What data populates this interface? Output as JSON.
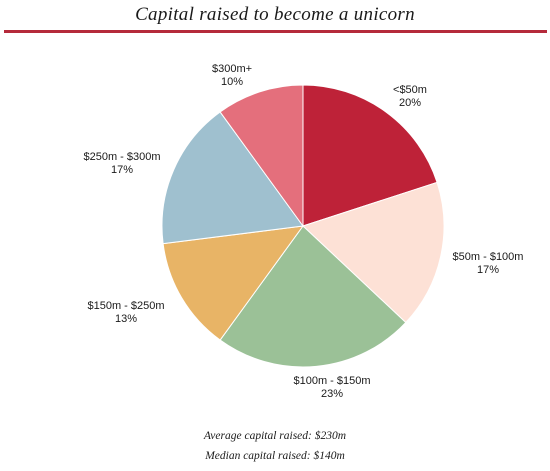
{
  "chart_data": {
    "type": "pie",
    "title": "Capital raised to become a unicorn",
    "slices": [
      {
        "label": "<$50m",
        "percent_label": "20%",
        "value": 20,
        "color": "#be2238"
      },
      {
        "label": "$50m - $100m",
        "percent_label": "17%",
        "value": 17,
        "color": "#fde1d6"
      },
      {
        "label": "$100m - $150m",
        "percent_label": "23%",
        "value": 23,
        "color": "#9bc197"
      },
      {
        "label": "$150m - $250m",
        "percent_label": "13%",
        "value": 13,
        "color": "#e8b466"
      },
      {
        "label": "$250m - $300m",
        "percent_label": "17%",
        "value": 17,
        "color": "#9fc0cf"
      },
      {
        "label": "$300m+",
        "percent_label": "10%",
        "value": 10,
        "color": "#e46f7c"
      }
    ]
  },
  "notes": {
    "average": "Average capital raised: $230m",
    "median": "Median capital raised: $140m"
  }
}
